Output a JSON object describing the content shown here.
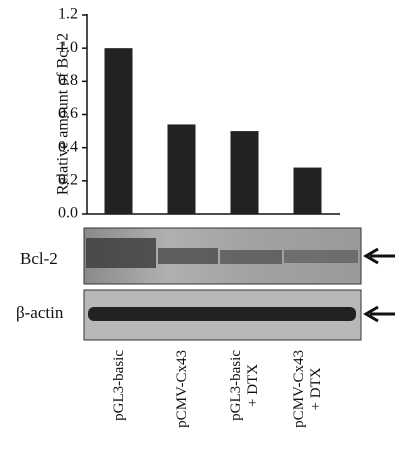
{
  "chart_data": {
    "type": "bar",
    "y_label": "Relative amount of Bcl-2",
    "categories": [
      "pGL3-basic",
      "pCMV-Cx43",
      "pGL3-basic\n+ DTX",
      "pCMV-Cx43\n+ DTX"
    ],
    "values": [
      1.0,
      0.54,
      0.5,
      0.28
    ],
    "color": "#222222",
    "ylim": [
      0,
      1.2
    ],
    "yticks": [
      {
        "value": 0,
        "label": "0.0"
      },
      0.2,
      0.4,
      0.6,
      0.8,
      {
        "value": 1,
        "label": "1.0"
      },
      1.2
    ],
    "annotations": [
      "Bcl-2",
      "β-actin"
    ]
  }
}
